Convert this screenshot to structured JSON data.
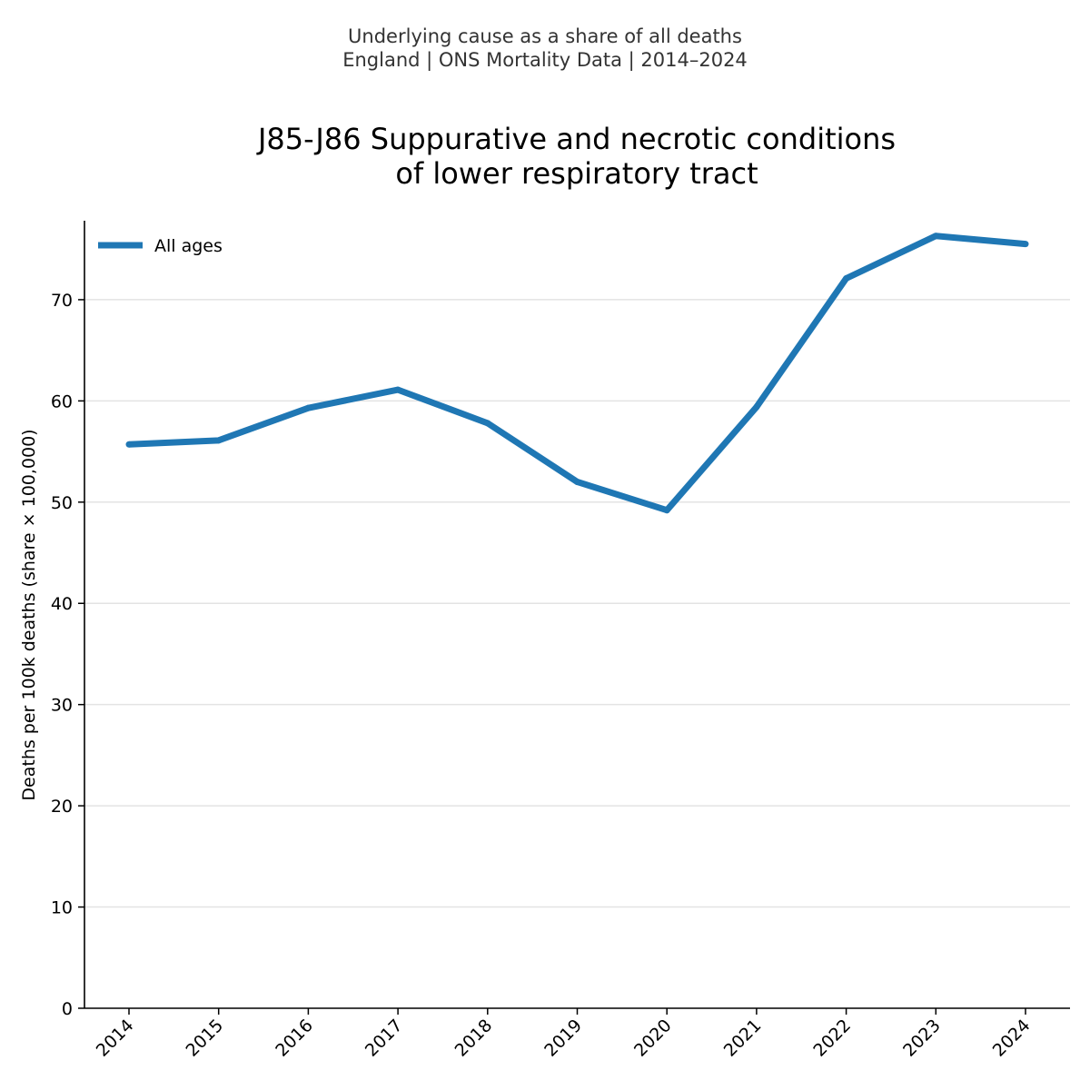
{
  "header": {
    "subtitle_line1": "Underlying cause as a share of all deaths",
    "subtitle_line2": "England | ONS Mortality Data | 2014–2024"
  },
  "chart_data": {
    "type": "line",
    "title_line1": "J85-J86 Suppurative and necrotic conditions",
    "title_line2": "of lower respiratory tract",
    "xlabel": "",
    "ylabel": "Deaths per 100k deaths (share × 100,000)",
    "categories": [
      "2014",
      "2015",
      "2016",
      "2017",
      "2018",
      "2019",
      "2020",
      "2021",
      "2022",
      "2023",
      "2024"
    ],
    "series": [
      {
        "name": "All ages",
        "color": "#1f77b4",
        "values": [
          55.7,
          56.1,
          59.3,
          61.1,
          57.8,
          52.0,
          49.2,
          59.4,
          72.1,
          76.3,
          75.5
        ]
      }
    ],
    "ylim": [
      0,
      77.8
    ],
    "yticks": [
      0,
      10,
      20,
      30,
      40,
      50,
      60,
      70
    ],
    "grid": "horizontal",
    "legend_position": "top-left"
  }
}
